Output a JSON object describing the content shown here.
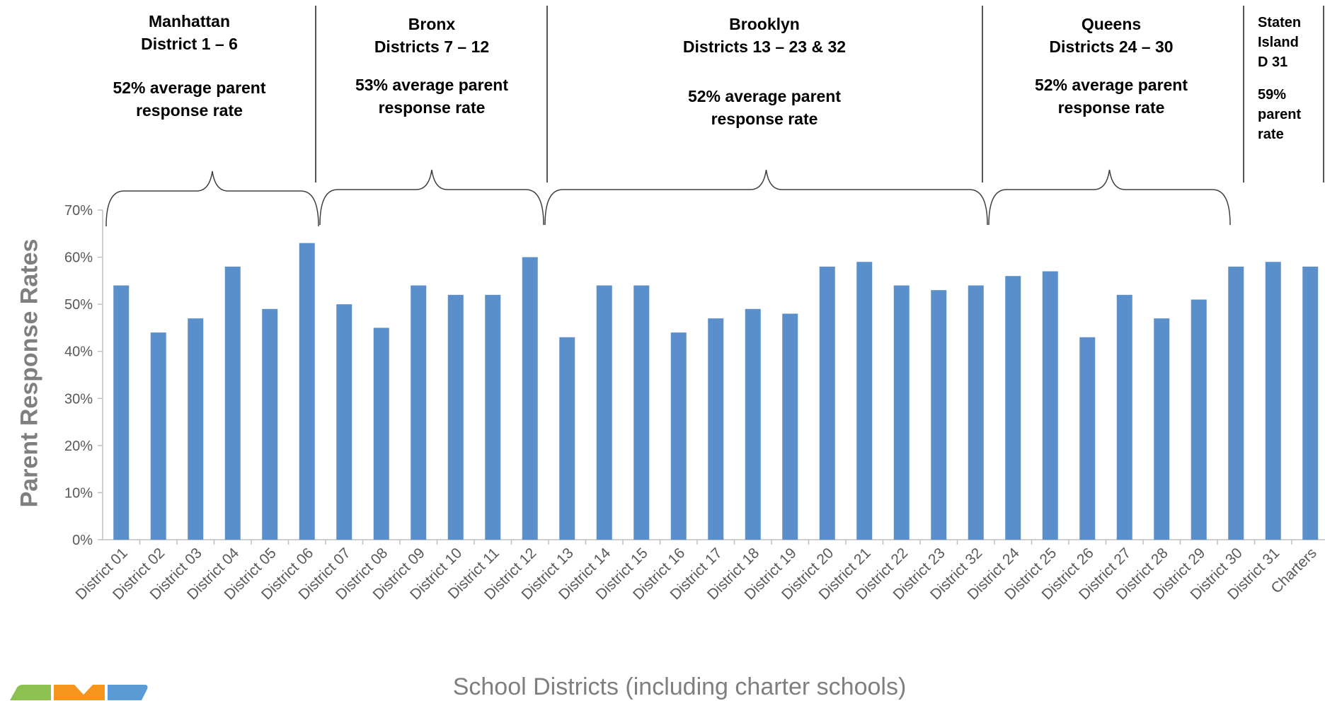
{
  "chart_data": {
    "type": "bar",
    "ylabel": "Parent Response Rates",
    "xlabel": "School Districts (including charter schools)",
    "ylim": [
      0,
      70
    ],
    "y_ticks": [
      "0%",
      "10%",
      "20%",
      "30%",
      "40%",
      "50%",
      "60%",
      "70%"
    ],
    "grid": false,
    "bar_color": "#5b8fcb",
    "categories": [
      "District 01",
      "District 02",
      "District 03",
      "District 04",
      "District 05",
      "District 06",
      "District 07",
      "District 08",
      "District 09",
      "District 10",
      "District 11",
      "District 12",
      "District 13",
      "District 14",
      "District 15",
      "District 16",
      "District 17",
      "District 18",
      "District 19",
      "District 20",
      "District 21",
      "District 22",
      "District 23",
      "District 32",
      "District 24",
      "District 25",
      "District 26",
      "District 27",
      "District 28",
      "District 29",
      "District 30",
      "District 31",
      "Charters"
    ],
    "values": [
      54,
      44,
      47,
      58,
      49,
      63,
      50,
      45,
      54,
      52,
      52,
      60,
      43,
      54,
      54,
      44,
      47,
      49,
      48,
      58,
      59,
      54,
      53,
      54,
      56,
      57,
      43,
      52,
      47,
      51,
      58,
      59,
      58
    ]
  },
  "boroughs": [
    {
      "name": "Manhattan",
      "districts": "District 1 – 6",
      "rate_line1": "52% average parent",
      "rate_line2": "response rate"
    },
    {
      "name": "Bronx",
      "districts": "Districts 7 – 12",
      "rate_line1": "53% average parent",
      "rate_line2": "response rate"
    },
    {
      "name": "Brooklyn",
      "districts": "Districts 13 – 23 & 32",
      "rate_line1": "52% average parent",
      "rate_line2": "response rate"
    },
    {
      "name": "Queens",
      "districts": "Districts 24 – 30",
      "rate_line1": "52% average parent",
      "rate_line2": "response rate"
    },
    {
      "name_line1": "Staten",
      "name_line2": "Island",
      "districts": "D 31",
      "rate_line1": "59%",
      "rate_line2": "parent",
      "rate_line3": "rate"
    }
  ],
  "colors": {
    "bar": "#5b8fcb",
    "axis_text": "#595959",
    "title_text": "#7f7f7f",
    "logo": [
      "#8cc152",
      "#f7941d",
      "#5b9bd5"
    ]
  }
}
